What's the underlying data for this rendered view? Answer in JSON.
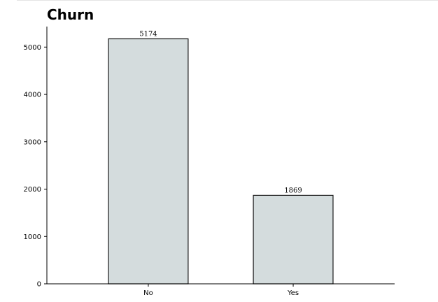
{
  "chart_data": {
    "type": "bar",
    "title": "Churn",
    "categories": [
      "No",
      "Yes"
    ],
    "values": [
      5174,
      1869
    ],
    "data_labels": [
      "5174",
      "1869"
    ],
    "xlabel": "",
    "ylabel": "",
    "ylim": [
      0,
      5433
    ],
    "y_ticks": [
      0,
      1000,
      2000,
      3000,
      4000,
      5000
    ],
    "y_tick_labels": [
      "0",
      "1000",
      "2000",
      "3000",
      "4000",
      "5000"
    ],
    "grid": false,
    "legend": "none",
    "bar_fill": "#d4dcdd",
    "bar_edge": "#1a1a1a",
    "axis_color": "#000000"
  }
}
